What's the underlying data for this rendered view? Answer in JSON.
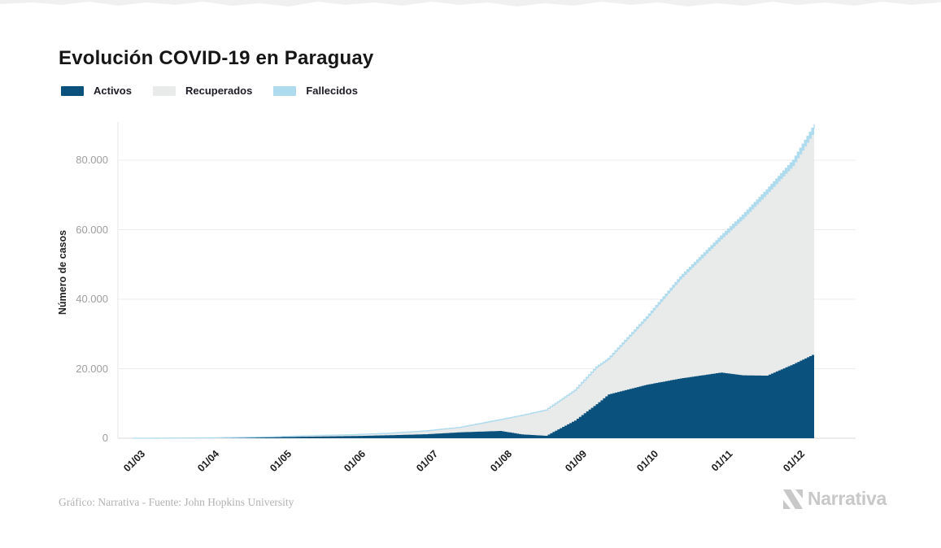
{
  "page": {
    "title": "Evolución COVID-19 en Paraguay"
  },
  "legend": {
    "items": [
      {
        "label": "Activos",
        "color": "#0a527d"
      },
      {
        "label": "Recuperados",
        "color": "#e9eaea"
      },
      {
        "label": "Fallecidos",
        "color": "#aedbee"
      }
    ]
  },
  "chart_data": {
    "type": "area",
    "stacked": true,
    "title": "Evolución COVID-19 en Paraguay",
    "xlabel": "",
    "ylabel": "Número de casos",
    "ylim": [
      0,
      90000
    ],
    "grid": true,
    "legend_position": "top-left",
    "background": "#ffffff",
    "colors": {
      "activos": "#0a527d",
      "recuperados": "#e9eaea",
      "fallecidos": "#aedbee",
      "gridline": "#ececec",
      "axis_line": "#d9d9d9",
      "y_tick_text": "#9e9e9e",
      "x_tick_text": "#1d1d1d"
    },
    "y_ticks": [
      {
        "value": 0,
        "label": "0"
      },
      {
        "value": 20000,
        "label": "20.000"
      },
      {
        "value": 40000,
        "label": "40.000"
      },
      {
        "value": 60000,
        "label": "60.000"
      },
      {
        "value": 80000,
        "label": "80.000"
      }
    ],
    "x_ticks": [
      {
        "day": 0,
        "label": "01/03"
      },
      {
        "day": 31,
        "label": "01/04"
      },
      {
        "day": 61,
        "label": "01/05"
      },
      {
        "day": 92,
        "label": "01/06"
      },
      {
        "day": 122,
        "label": "01/07"
      },
      {
        "day": 153,
        "label": "01/08"
      },
      {
        "day": 184,
        "label": "01/09"
      },
      {
        "day": 214,
        "label": "01/10"
      },
      {
        "day": 245,
        "label": "01/11"
      },
      {
        "day": 275,
        "label": "01/12"
      }
    ],
    "x_days_from_first_tick": [
      0,
      6,
      14,
      31,
      45,
      61,
      75,
      92,
      106,
      122,
      136,
      153,
      162,
      172,
      184,
      193,
      198,
      214,
      228,
      245,
      254,
      264,
      275,
      284
    ],
    "series": [
      {
        "name": "Activos",
        "values": [
          0,
          5,
          30,
          90,
          160,
          330,
          480,
          640,
          850,
          1150,
          1700,
          2100,
          1100,
          700,
          5100,
          9800,
          12600,
          15400,
          17200,
          18900,
          18100,
          18000,
          21300,
          24300
        ]
      },
      {
        "name": "Recuperados",
        "values": [
          0,
          0,
          2,
          25,
          70,
          130,
          280,
          390,
          550,
          950,
          1400,
          3200,
          5400,
          7300,
          8500,
          10400,
          10000,
          19000,
          28500,
          38300,
          44900,
          52100,
          57000,
          64100
        ]
      },
      {
        "name": "Fallecidos",
        "values": [
          0,
          0,
          2,
          5,
          8,
          10,
          11,
          12,
          14,
          22,
          35,
          65,
          95,
          130,
          210,
          290,
          340,
          520,
          730,
          1020,
          1200,
          1370,
          1700,
          1950
        ]
      }
    ]
  },
  "footer": {
    "credit": "Gráfico: Narrativa - Fuente: John Hopkins University",
    "brand": "Narrativa"
  }
}
